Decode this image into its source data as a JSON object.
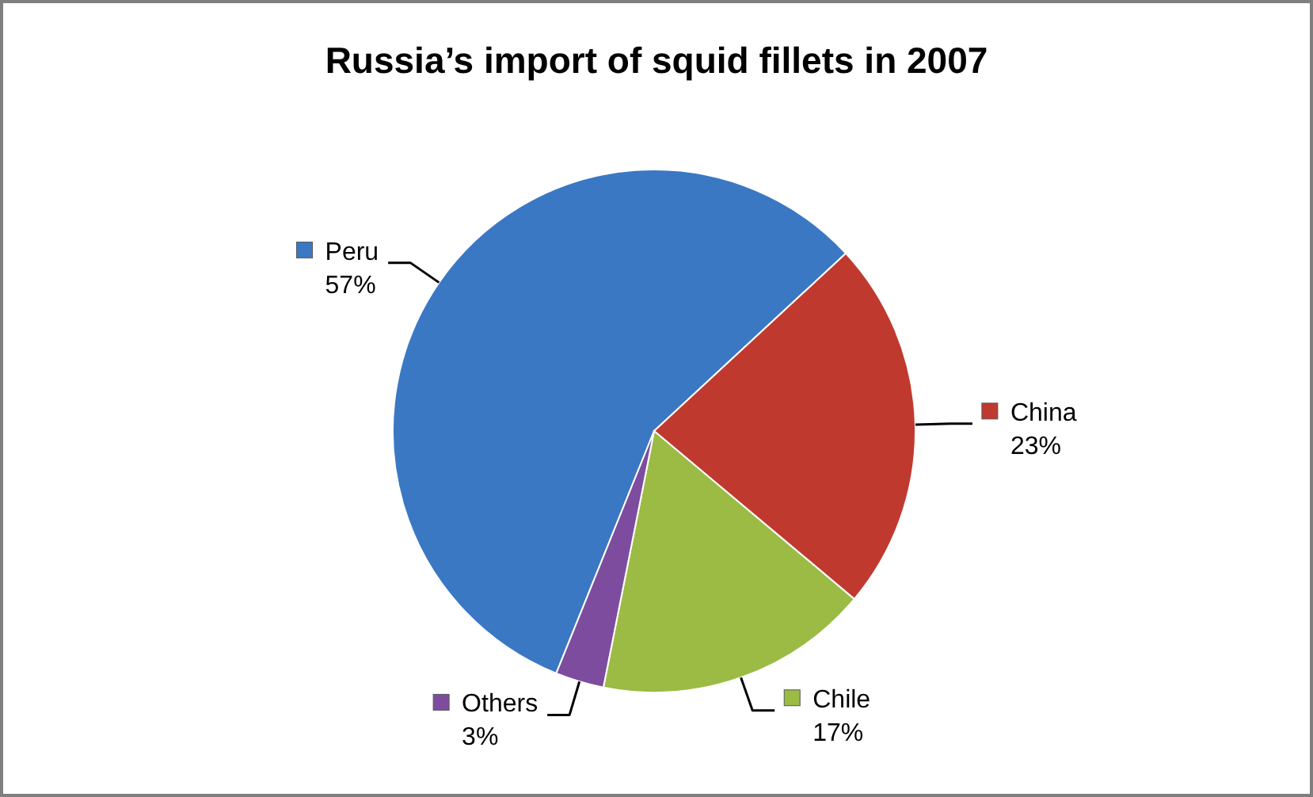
{
  "chart_data": {
    "type": "pie",
    "title": "Russia’s import of squid fillets in 2007",
    "categories": [
      "Peru",
      "China",
      "Chile",
      "Others"
    ],
    "values": [
      57,
      23,
      17,
      3
    ],
    "colors": [
      "#3a78c4",
      "#c0392f",
      "#9bbb45",
      "#7d4c9e"
    ],
    "value_labels": [
      "57%",
      "23%",
      "17%",
      "3%"
    ],
    "legend": "right"
  }
}
